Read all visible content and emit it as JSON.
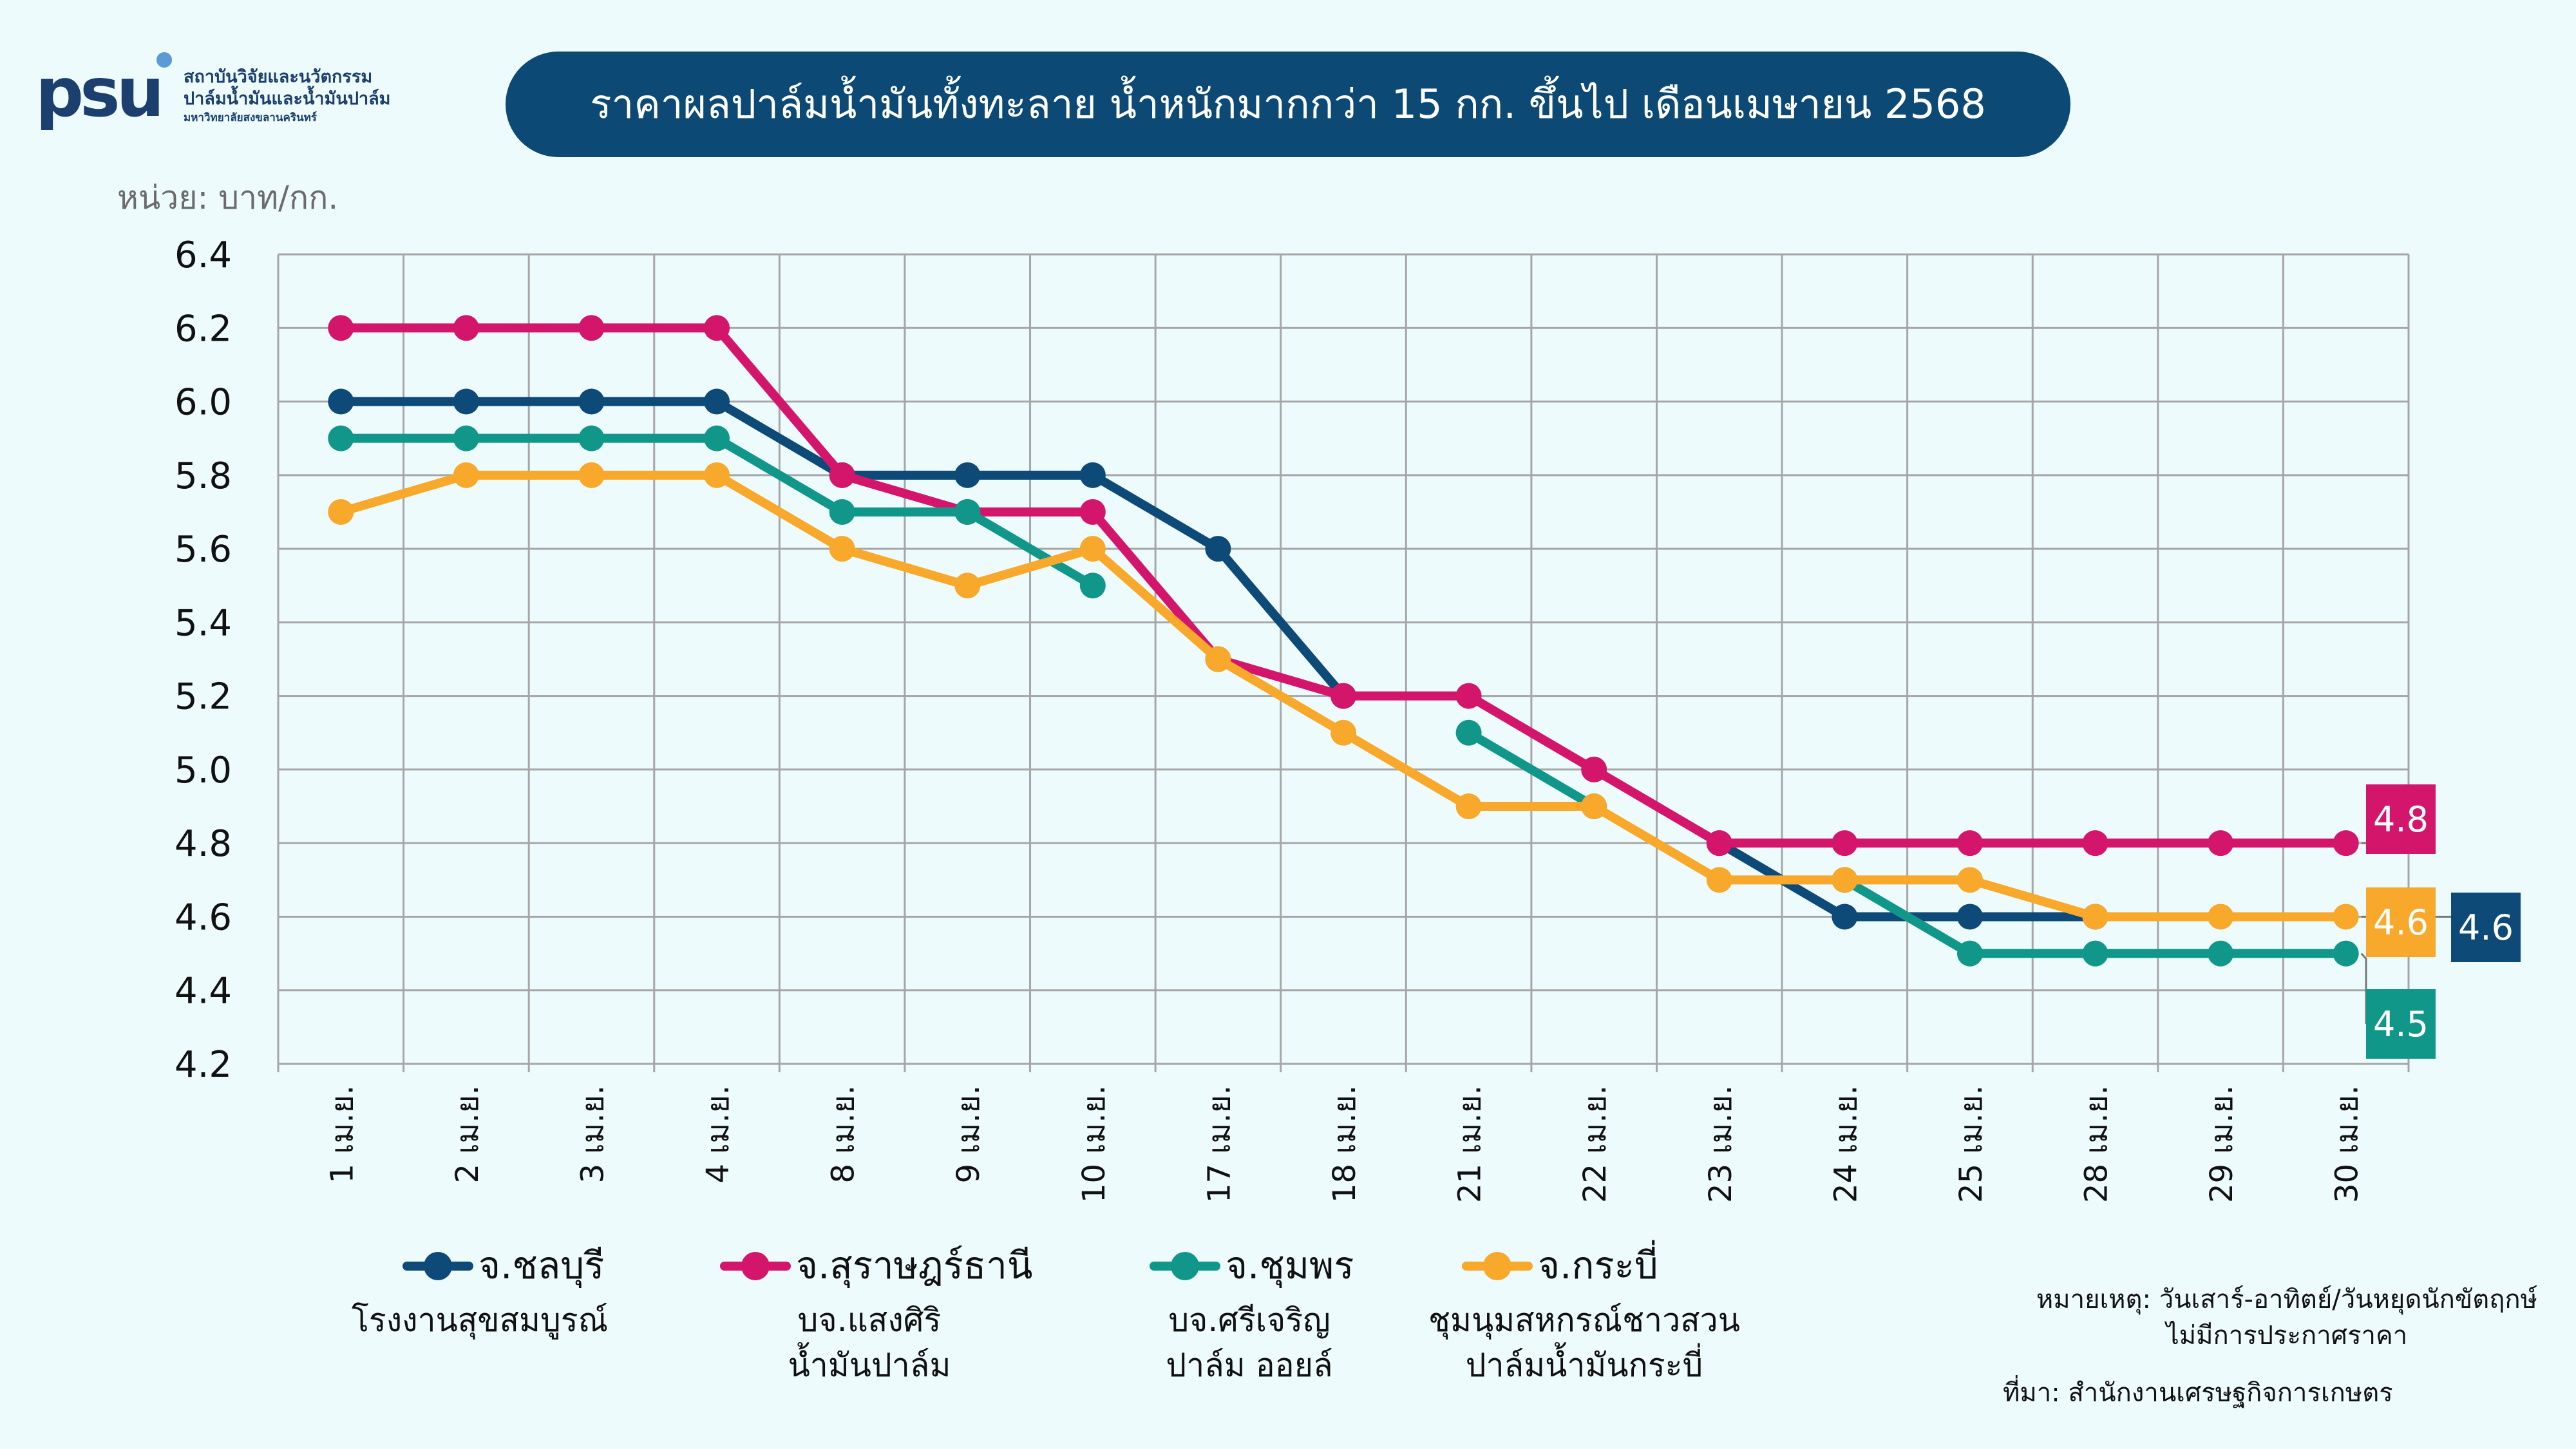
{
  "header": {
    "title": "ราคาผลปาล์มน้ำมันทั้งทะลาย น้ำหนักมากกว่า 15 กก. ขึ้นไป เดือนเมษายน 2568",
    "unit": "หน่วย: บาท/กก."
  },
  "logo": {
    "mark": "PSU",
    "line1": "สถาบันวิจัยและนวัตกรรม",
    "line2": "ปาล์มน้ำมันและน้ำมันปาล์ม",
    "line3": "มหาวิทยาลัยสงขลานครินทร์"
  },
  "legend": [
    {
      "label": "จ.ชลบุรี",
      "sub1": "โรงงานสุขสมบูรณ์",
      "sub2": ""
    },
    {
      "label": "จ.สุราษฎร์ธานี",
      "sub1": "บจ.แสงศิริ",
      "sub2": "น้ำมันปาล์ม"
    },
    {
      "label": "จ.ชุมพร",
      "sub1": "บจ.ศรีเจริญ",
      "sub2": "ปาล์ม ออยล์"
    },
    {
      "label": "จ.กระบี่",
      "sub1": "ชุมนุมสหกรณ์ชาวสวน",
      "sub2": "ปาล์มน้ำมันกระบี่"
    }
  ],
  "footer": {
    "note_line1": "หมายเหตุ: วันเสาร์-อาทิตย์/วันหยุดนักขัตฤกษ์",
    "note_line2": "ไม่มีการประกาศราคา",
    "source": "ที่มา: สำนักงานเศรษฐกิจการเกษตร"
  },
  "end_labels": {
    "suratthani": "4.8",
    "krabi": "4.6",
    "chonburi": "4.6",
    "chumphon": "4.5"
  },
  "chart_data": {
    "type": "line",
    "categories": [
      "1 เม.ย.",
      "2 เม.ย.",
      "3 เม.ย.",
      "4 เม.ย.",
      "8 เม.ย.",
      "9 เม.ย.",
      "10 เม.ย.",
      "17 เม.ย.",
      "18 เม.ย.",
      "21 เม.ย.",
      "22 เม.ย.",
      "23 เม.ย.",
      "24 เม.ย.",
      "25 เม.ย.",
      "28 เม.ย.",
      "29 เม.ย.",
      "30 เม.ย."
    ],
    "ylim": [
      4.2,
      6.4
    ],
    "yticks": [
      "4.2",
      "4.4",
      "4.6",
      "4.8",
      "5.0",
      "5.2",
      "5.4",
      "5.6",
      "5.8",
      "6.0",
      "6.2",
      "6.4"
    ],
    "grid": true,
    "legend_position": "bottom",
    "series": [
      {
        "key": "chonburi",
        "name": "จ.ชลบุรี",
        "color": "#0d4a78",
        "values": [
          6.0,
          6.0,
          6.0,
          6.0,
          5.8,
          5.8,
          5.8,
          5.6,
          5.2,
          null,
          null,
          4.8,
          4.6,
          4.6,
          4.6,
          null,
          null
        ]
      },
      {
        "key": "suratthani",
        "name": "จ.สุราษฎร์ธานี",
        "color": "#d3166b",
        "values": [
          6.2,
          6.2,
          6.2,
          6.2,
          5.8,
          5.7,
          5.7,
          5.3,
          5.2,
          5.2,
          5.0,
          4.8,
          4.8,
          4.8,
          4.8,
          4.8,
          4.8
        ]
      },
      {
        "key": "chumphon",
        "name": "จ.ชุมพร",
        "color": "#11978a",
        "values": [
          5.9,
          5.9,
          5.9,
          5.9,
          5.7,
          5.7,
          5.5,
          null,
          null,
          5.1,
          4.9,
          null,
          4.7,
          4.5,
          4.5,
          4.5,
          4.5
        ]
      },
      {
        "key": "krabi",
        "name": "จ.กระบี่",
        "color": "#f8a82a",
        "values": [
          5.7,
          5.8,
          5.8,
          5.8,
          5.6,
          5.5,
          5.6,
          5.3,
          5.1,
          4.9,
          4.9,
          4.7,
          4.7,
          4.7,
          4.6,
          4.6,
          4.6
        ]
      }
    ]
  }
}
